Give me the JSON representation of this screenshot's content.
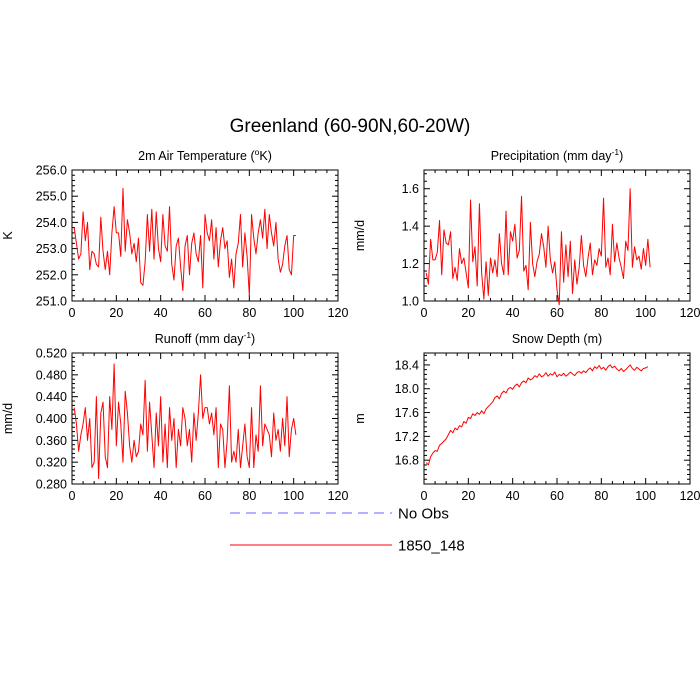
{
  "figure_title": "Greenland (60-90N,60-20W)",
  "legend": [
    {
      "label": "No Obs",
      "color": "#6666ff",
      "dash": true
    },
    {
      "label": "1850_148",
      "color": "#ff0000",
      "dash": false
    }
  ],
  "chart_data": [
    {
      "type": "line",
      "title": "2m Air Temperature (",
      "title_sup": "o",
      "title_tail": "K)",
      "ylabel": "K",
      "xlim": [
        0,
        120
      ],
      "xticks": [
        0,
        20,
        40,
        60,
        80,
        100,
        120
      ],
      "xtick_labels": [
        "0",
        "20",
        "40",
        "60",
        "80",
        "100",
        "120"
      ],
      "ylim": [
        251.0,
        256.0
      ],
      "yticks": [
        251,
        252,
        253,
        254,
        255,
        256
      ],
      "ytick_labels": [
        "251.0",
        "252.0",
        "253.0",
        "254.0",
        "255.0",
        "256.0"
      ],
      "series": [
        {
          "color": "#ff0000",
          "x_start": 1,
          "x_step": 1,
          "values": [
            253.8,
            253.2,
            252.6,
            252.8,
            254.4,
            253.3,
            254.0,
            252.2,
            252.9,
            252.8,
            252.4,
            252.3,
            254.2,
            252.9,
            252.2,
            252.9,
            252.0,
            253.6,
            254.6,
            253.6,
            253.6,
            252.7,
            255.3,
            252.9,
            254.1,
            253.6,
            252.8,
            253.2,
            252.5,
            253.4,
            251.7,
            251.6,
            252.5,
            254.3,
            252.9,
            254.5,
            252.6,
            254.4,
            253.0,
            252.5,
            254.3,
            253.1,
            252.9,
            254.6,
            252.4,
            251.8,
            253.1,
            253.4,
            252.3,
            251.4,
            253.1,
            253.5,
            252.0,
            253.2,
            253.6,
            252.8,
            252.5,
            253.5,
            251.5,
            254.3,
            253.6,
            253.3,
            254.1,
            252.6,
            253.8,
            252.3,
            253.3,
            253.8,
            253.0,
            253.3,
            251.9,
            252.6,
            251.5,
            252.8,
            253.2,
            254.3,
            252.3,
            253.6,
            252.7,
            251.2,
            254.3,
            253.4,
            252.8,
            253.6,
            254.1,
            253.4,
            254.5,
            253.0,
            254.3,
            253.6,
            253.1,
            254.0,
            252.6,
            252.1,
            252.4,
            253.1,
            253.5,
            252.2,
            252.0,
            253.5,
            253.5
          ]
        }
      ]
    },
    {
      "type": "line",
      "title": "Precipitation (mm day",
      "title_sup": "-1",
      "title_tail": ")",
      "ylabel": "mm/d",
      "xlim": [
        0,
        120
      ],
      "xticks": [
        0,
        20,
        40,
        60,
        80,
        100,
        120
      ],
      "xtick_labels": [
        "0",
        "20",
        "40",
        "60",
        "80",
        "100",
        "120"
      ],
      "ylim": [
        1.0,
        1.7
      ],
      "yticks": [
        1.0,
        1.2,
        1.4,
        1.6
      ],
      "ytick_labels": [
        "1.0",
        "1.2",
        "1.4",
        "1.6"
      ],
      "series": [
        {
          "color": "#ff0000",
          "x_start": 1,
          "x_step": 1,
          "values": [
            1.15,
            1.09,
            1.33,
            1.22,
            1.22,
            1.26,
            1.43,
            1.14,
            1.38,
            1.31,
            1.3,
            1.37,
            1.12,
            1.18,
            1.11,
            1.28,
            1.2,
            1.23,
            1.15,
            1.07,
            1.54,
            1.21,
            1.29,
            1.08,
            1.52,
            1.15,
            1.01,
            1.21,
            1.03,
            1.23,
            1.15,
            1.22,
            1.13,
            1.36,
            1.2,
            1.14,
            1.48,
            1.14,
            1.37,
            1.32,
            1.41,
            1.23,
            1.27,
            1.56,
            1.16,
            1.19,
            1.06,
            1.42,
            1.2,
            1.13,
            1.21,
            1.25,
            1.36,
            1.29,
            1.18,
            1.4,
            1.22,
            1.15,
            1.21,
            1.06,
            0.98,
            1.37,
            1.1,
            1.3,
            1.13,
            1.32,
            1.04,
            1.22,
            1.09,
            1.18,
            1.35,
            1.19,
            1.13,
            1.23,
            1.31,
            1.14,
            1.22,
            1.19,
            1.28,
            1.24,
            1.55,
            1.18,
            1.23,
            1.14,
            1.41,
            1.21,
            1.31,
            1.23,
            1.18,
            1.12,
            1.32,
            1.27,
            1.6,
            1.18,
            1.29,
            1.22,
            1.24,
            1.17,
            1.28,
            1.19,
            1.33,
            1.18
          ]
        }
      ]
    },
    {
      "type": "line",
      "title": "Runoff (mm day",
      "title_sup": "-1",
      "title_tail": ")",
      "ylabel": "mm/d",
      "xlim": [
        0,
        120
      ],
      "xticks": [
        0,
        20,
        40,
        60,
        80,
        100,
        120
      ],
      "xtick_labels": [
        "0",
        "20",
        "40",
        "60",
        "80",
        "100",
        "120"
      ],
      "ylim": [
        0.28,
        0.52
      ],
      "yticks": [
        0.28,
        0.32,
        0.36,
        0.4,
        0.44,
        0.48,
        0.52
      ],
      "ytick_labels": [
        "0.280",
        "0.320",
        "0.360",
        "0.400",
        "0.440",
        "0.480",
        "0.520"
      ],
      "series": [
        {
          "color": "#ff0000",
          "x_start": 1,
          "x_step": 1,
          "values": [
            0.42,
            0.39,
            0.34,
            0.37,
            0.39,
            0.42,
            0.36,
            0.4,
            0.31,
            0.32,
            0.44,
            0.29,
            0.41,
            0.43,
            0.33,
            0.31,
            0.44,
            0.38,
            0.5,
            0.35,
            0.43,
            0.39,
            0.32,
            0.45,
            0.41,
            0.35,
            0.32,
            0.36,
            0.33,
            0.34,
            0.39,
            0.37,
            0.47,
            0.34,
            0.43,
            0.37,
            0.31,
            0.41,
            0.35,
            0.44,
            0.32,
            0.39,
            0.31,
            0.42,
            0.36,
            0.4,
            0.31,
            0.38,
            0.35,
            0.42,
            0.4,
            0.35,
            0.38,
            0.32,
            0.41,
            0.36,
            0.41,
            0.48,
            0.4,
            0.42,
            0.42,
            0.39,
            0.41,
            0.37,
            0.42,
            0.31,
            0.39,
            0.38,
            0.31,
            0.36,
            0.46,
            0.32,
            0.34,
            0.32,
            0.38,
            0.31,
            0.35,
            0.39,
            0.33,
            0.31,
            0.42,
            0.31,
            0.37,
            0.34,
            0.46,
            0.35,
            0.39,
            0.38,
            0.37,
            0.33,
            0.41,
            0.36,
            0.38,
            0.34,
            0.4,
            0.35,
            0.44,
            0.33,
            0.38,
            0.4,
            0.37
          ]
        }
      ]
    },
    {
      "type": "line",
      "title": "Snow Depth (m)",
      "title_sup": "",
      "title_tail": "",
      "ylabel": "m",
      "xlim": [
        0,
        120
      ],
      "xticks": [
        0,
        20,
        40,
        60,
        80,
        100,
        120
      ],
      "xtick_labels": [
        "0",
        "20",
        "40",
        "60",
        "80",
        "100",
        "120"
      ],
      "ylim": [
        16.4,
        18.6
      ],
      "yticks": [
        16.8,
        17.2,
        17.6,
        18.0,
        18.4
      ],
      "ytick_labels": [
        "16.8",
        "17.2",
        "17.6",
        "18.0",
        "18.4"
      ],
      "series": [
        {
          "color": "#ff0000",
          "x_start": 1,
          "x_step": 1,
          "values": [
            16.76,
            16.72,
            16.86,
            16.92,
            16.96,
            16.95,
            17.05,
            17.08,
            17.12,
            17.16,
            17.23,
            17.3,
            17.26,
            17.34,
            17.31,
            17.38,
            17.36,
            17.45,
            17.42,
            17.52,
            17.5,
            17.58,
            17.55,
            17.6,
            17.57,
            17.63,
            17.58,
            17.66,
            17.7,
            17.74,
            17.78,
            17.85,
            17.88,
            17.83,
            17.92,
            17.96,
            17.93,
            18.0,
            18.02,
            17.99,
            18.05,
            18.08,
            18.03,
            18.1,
            18.13,
            18.1,
            18.18,
            18.15,
            18.17,
            18.22,
            18.19,
            18.25,
            18.2,
            18.22,
            18.27,
            18.21,
            18.25,
            18.23,
            18.28,
            18.2,
            18.24,
            18.22,
            18.26,
            18.21,
            18.24,
            18.28,
            18.25,
            18.22,
            18.27,
            18.29,
            18.26,
            18.3,
            18.27,
            18.32,
            18.35,
            18.3,
            18.37,
            18.34,
            18.39,
            18.33,
            18.36,
            18.31,
            18.37,
            18.4,
            18.35,
            18.38,
            18.33,
            18.3,
            18.34,
            18.29,
            18.32,
            18.36,
            18.4,
            18.34,
            18.31,
            18.36,
            18.33,
            18.3,
            18.34,
            18.35,
            18.37
          ]
        }
      ]
    }
  ]
}
